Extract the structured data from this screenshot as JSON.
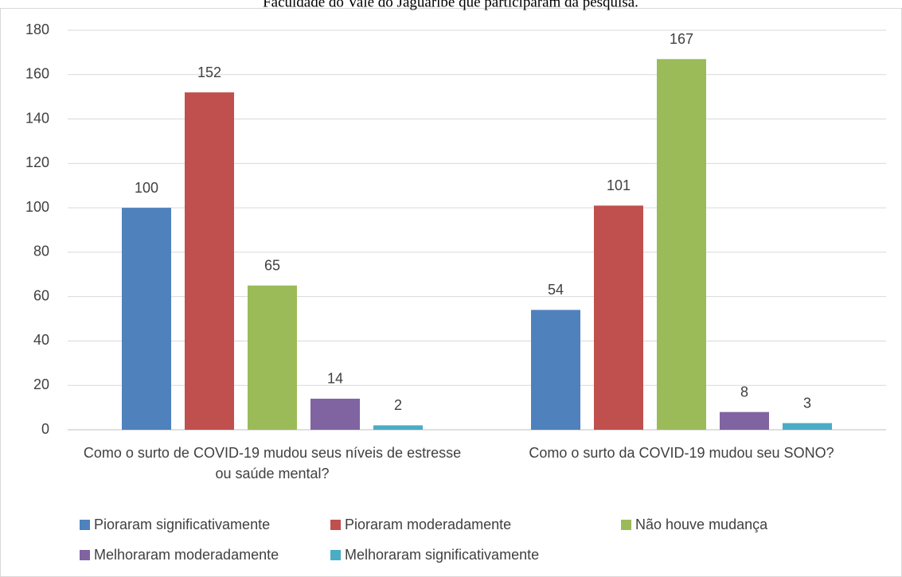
{
  "chart_data": {
    "type": "bar",
    "title": "Faculdade do Vale do Jaguaribe que participaram da pesquisa.",
    "categories": [
      "Como o surto de COVID-19 mudou seus níveis de estresse ou saúde mental?",
      "Como o surto da COVID-19 mudou seu SONO?"
    ],
    "series": [
      {
        "name": "Pioraram significativamente",
        "color": "#4f81bd",
        "values": [
          100,
          54
        ]
      },
      {
        "name": "Pioraram moderadamente",
        "color": "#c0504d",
        "values": [
          152,
          101
        ]
      },
      {
        "name": "Não houve mudança",
        "color": "#9bbb59",
        "values": [
          65,
          167
        ]
      },
      {
        "name": "Melhoraram moderadamente",
        "color": "#8064a2",
        "values": [
          14,
          8
        ]
      },
      {
        "name": "Melhoraram significativamente",
        "color": "#4bacc6",
        "values": [
          2,
          3
        ]
      }
    ],
    "ylim": [
      0,
      180
    ],
    "yticks": [
      0,
      20,
      40,
      60,
      80,
      100,
      120,
      140,
      160,
      180
    ],
    "grid": true,
    "legend": "bottom"
  }
}
